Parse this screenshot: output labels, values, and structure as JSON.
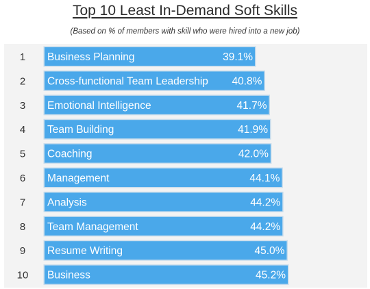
{
  "title": "Top 10 Least In-Demand Soft Skills",
  "subtitle": "(Based on % of members with skill who were hired into a new job)",
  "colors": {
    "bar": "#4aa8ea",
    "bar_edge": "#c7dcec",
    "panel": "#f3f3f3"
  },
  "chart_data": {
    "type": "bar",
    "orientation": "horizontal",
    "categories": [
      "Business Planning",
      "Cross-functional Team Leadership",
      "Emotional Intelligence",
      "Team Building",
      "Coaching",
      "Management",
      "Analysis",
      "Team Management",
      "Resume Writing",
      "Business"
    ],
    "ranks": [
      "1",
      "2",
      "3",
      "4",
      "5",
      "6",
      "7",
      "8",
      "9",
      "10"
    ],
    "values": [
      39.1,
      40.8,
      41.7,
      41.9,
      42.0,
      44.1,
      44.2,
      44.2,
      45.0,
      45.2
    ],
    "value_labels": [
      "39.1%",
      "40.8%",
      "41.7%",
      "41.9%",
      "42.0%",
      "44.1%",
      "44.2%",
      "44.2%",
      "45.0%",
      "45.2%"
    ],
    "xlim": [
      0,
      45.2
    ],
    "grid": false,
    "legend": "none"
  }
}
